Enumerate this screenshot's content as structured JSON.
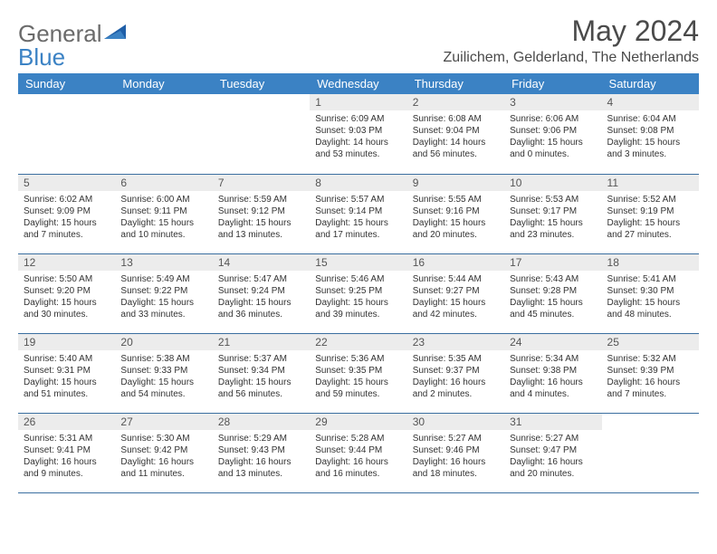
{
  "branding": {
    "word1": "General",
    "word2": "Blue",
    "text_color_word1": "#6b6b6b",
    "text_color_word2": "#3b82c4",
    "triangle_color": "#3b82c4"
  },
  "header": {
    "month_title": "May 2024",
    "location": "Zuilichem, Gelderland, The Netherlands"
  },
  "styling": {
    "header_bg": "#3b82c4",
    "header_text": "#ffffff",
    "daynum_bg": "#ececec",
    "row_border": "#3b6fa0",
    "page_bg": "#ffffff",
    "body_text": "#333333",
    "title_color": "#4a4a4a",
    "month_fontsize": 32,
    "location_fontsize": 16,
    "weekday_fontsize": 13,
    "daynum_fontsize": 12,
    "detail_fontsize": 10
  },
  "weekdays": [
    "Sunday",
    "Monday",
    "Tuesday",
    "Wednesday",
    "Thursday",
    "Friday",
    "Saturday"
  ],
  "weeks": [
    [
      {
        "empty": true
      },
      {
        "empty": true
      },
      {
        "empty": true
      },
      {
        "num": "1",
        "sunrise": "Sunrise: 6:09 AM",
        "sunset": "Sunset: 9:03 PM",
        "daylight": "Daylight: 14 hours and 53 minutes."
      },
      {
        "num": "2",
        "sunrise": "Sunrise: 6:08 AM",
        "sunset": "Sunset: 9:04 PM",
        "daylight": "Daylight: 14 hours and 56 minutes."
      },
      {
        "num": "3",
        "sunrise": "Sunrise: 6:06 AM",
        "sunset": "Sunset: 9:06 PM",
        "daylight": "Daylight: 15 hours and 0 minutes."
      },
      {
        "num": "4",
        "sunrise": "Sunrise: 6:04 AM",
        "sunset": "Sunset: 9:08 PM",
        "daylight": "Daylight: 15 hours and 3 minutes."
      }
    ],
    [
      {
        "num": "5",
        "sunrise": "Sunrise: 6:02 AM",
        "sunset": "Sunset: 9:09 PM",
        "daylight": "Daylight: 15 hours and 7 minutes."
      },
      {
        "num": "6",
        "sunrise": "Sunrise: 6:00 AM",
        "sunset": "Sunset: 9:11 PM",
        "daylight": "Daylight: 15 hours and 10 minutes."
      },
      {
        "num": "7",
        "sunrise": "Sunrise: 5:59 AM",
        "sunset": "Sunset: 9:12 PM",
        "daylight": "Daylight: 15 hours and 13 minutes."
      },
      {
        "num": "8",
        "sunrise": "Sunrise: 5:57 AM",
        "sunset": "Sunset: 9:14 PM",
        "daylight": "Daylight: 15 hours and 17 minutes."
      },
      {
        "num": "9",
        "sunrise": "Sunrise: 5:55 AM",
        "sunset": "Sunset: 9:16 PM",
        "daylight": "Daylight: 15 hours and 20 minutes."
      },
      {
        "num": "10",
        "sunrise": "Sunrise: 5:53 AM",
        "sunset": "Sunset: 9:17 PM",
        "daylight": "Daylight: 15 hours and 23 minutes."
      },
      {
        "num": "11",
        "sunrise": "Sunrise: 5:52 AM",
        "sunset": "Sunset: 9:19 PM",
        "daylight": "Daylight: 15 hours and 27 minutes."
      }
    ],
    [
      {
        "num": "12",
        "sunrise": "Sunrise: 5:50 AM",
        "sunset": "Sunset: 9:20 PM",
        "daylight": "Daylight: 15 hours and 30 minutes."
      },
      {
        "num": "13",
        "sunrise": "Sunrise: 5:49 AM",
        "sunset": "Sunset: 9:22 PM",
        "daylight": "Daylight: 15 hours and 33 minutes."
      },
      {
        "num": "14",
        "sunrise": "Sunrise: 5:47 AM",
        "sunset": "Sunset: 9:24 PM",
        "daylight": "Daylight: 15 hours and 36 minutes."
      },
      {
        "num": "15",
        "sunrise": "Sunrise: 5:46 AM",
        "sunset": "Sunset: 9:25 PM",
        "daylight": "Daylight: 15 hours and 39 minutes."
      },
      {
        "num": "16",
        "sunrise": "Sunrise: 5:44 AM",
        "sunset": "Sunset: 9:27 PM",
        "daylight": "Daylight: 15 hours and 42 minutes."
      },
      {
        "num": "17",
        "sunrise": "Sunrise: 5:43 AM",
        "sunset": "Sunset: 9:28 PM",
        "daylight": "Daylight: 15 hours and 45 minutes."
      },
      {
        "num": "18",
        "sunrise": "Sunrise: 5:41 AM",
        "sunset": "Sunset: 9:30 PM",
        "daylight": "Daylight: 15 hours and 48 minutes."
      }
    ],
    [
      {
        "num": "19",
        "sunrise": "Sunrise: 5:40 AM",
        "sunset": "Sunset: 9:31 PM",
        "daylight": "Daylight: 15 hours and 51 minutes."
      },
      {
        "num": "20",
        "sunrise": "Sunrise: 5:38 AM",
        "sunset": "Sunset: 9:33 PM",
        "daylight": "Daylight: 15 hours and 54 minutes."
      },
      {
        "num": "21",
        "sunrise": "Sunrise: 5:37 AM",
        "sunset": "Sunset: 9:34 PM",
        "daylight": "Daylight: 15 hours and 56 minutes."
      },
      {
        "num": "22",
        "sunrise": "Sunrise: 5:36 AM",
        "sunset": "Sunset: 9:35 PM",
        "daylight": "Daylight: 15 hours and 59 minutes."
      },
      {
        "num": "23",
        "sunrise": "Sunrise: 5:35 AM",
        "sunset": "Sunset: 9:37 PM",
        "daylight": "Daylight: 16 hours and 2 minutes."
      },
      {
        "num": "24",
        "sunrise": "Sunrise: 5:34 AM",
        "sunset": "Sunset: 9:38 PM",
        "daylight": "Daylight: 16 hours and 4 minutes."
      },
      {
        "num": "25",
        "sunrise": "Sunrise: 5:32 AM",
        "sunset": "Sunset: 9:39 PM",
        "daylight": "Daylight: 16 hours and 7 minutes."
      }
    ],
    [
      {
        "num": "26",
        "sunrise": "Sunrise: 5:31 AM",
        "sunset": "Sunset: 9:41 PM",
        "daylight": "Daylight: 16 hours and 9 minutes."
      },
      {
        "num": "27",
        "sunrise": "Sunrise: 5:30 AM",
        "sunset": "Sunset: 9:42 PM",
        "daylight": "Daylight: 16 hours and 11 minutes."
      },
      {
        "num": "28",
        "sunrise": "Sunrise: 5:29 AM",
        "sunset": "Sunset: 9:43 PM",
        "daylight": "Daylight: 16 hours and 13 minutes."
      },
      {
        "num": "29",
        "sunrise": "Sunrise: 5:28 AM",
        "sunset": "Sunset: 9:44 PM",
        "daylight": "Daylight: 16 hours and 16 minutes."
      },
      {
        "num": "30",
        "sunrise": "Sunrise: 5:27 AM",
        "sunset": "Sunset: 9:46 PM",
        "daylight": "Daylight: 16 hours and 18 minutes."
      },
      {
        "num": "31",
        "sunrise": "Sunrise: 5:27 AM",
        "sunset": "Sunset: 9:47 PM",
        "daylight": "Daylight: 16 hours and 20 minutes."
      },
      {
        "empty": true
      }
    ]
  ]
}
